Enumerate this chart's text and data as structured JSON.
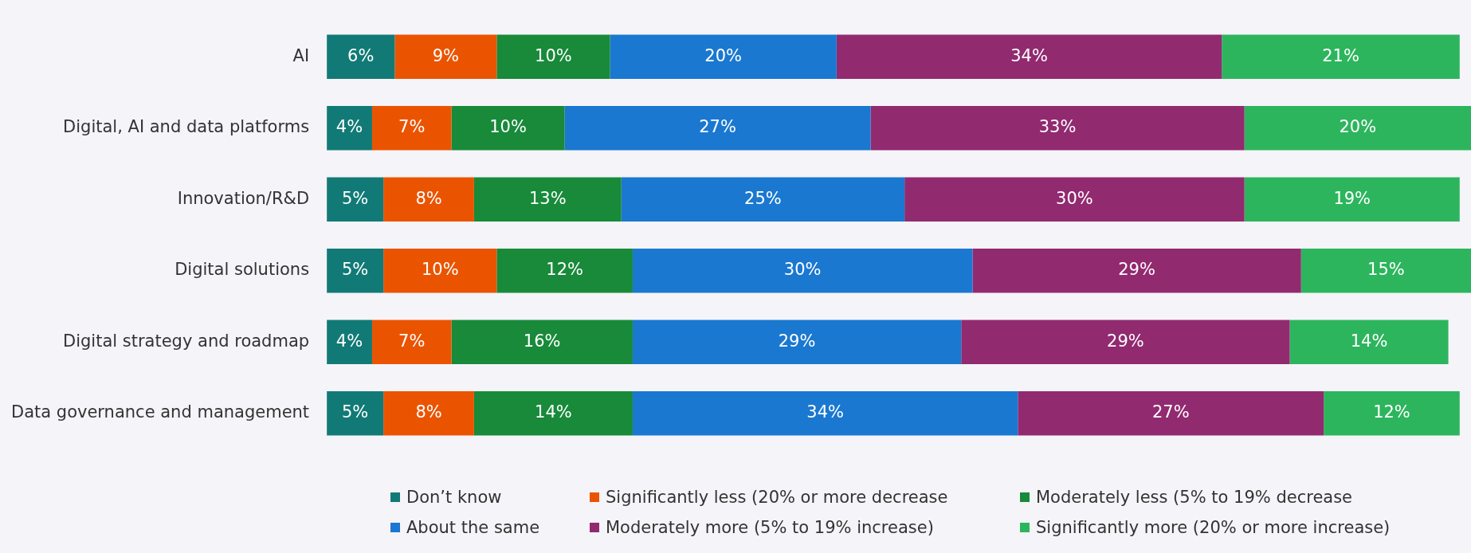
{
  "chart_data": {
    "type": "bar",
    "orientation": "horizontal",
    "stacked": true,
    "legend": "bottom",
    "categories": [
      "AI",
      "Digital, AI and data platforms",
      "Innovation/R&D",
      "Digital solutions",
      "Digital strategy and roadmap",
      "Data governance and management"
    ],
    "series": [
      {
        "name": "Don’t know",
        "color": "#127a76",
        "values": [
          6,
          4,
          5,
          5,
          4,
          5
        ],
        "value_labels": [
          "6%",
          "4%",
          "5%",
          "5%",
          "4%",
          "5%"
        ]
      },
      {
        "name": "Significantly less (20% or more decrease",
        "color": "#ea5400",
        "values": [
          9,
          7,
          8,
          10,
          7,
          8
        ],
        "value_labels": [
          "9%",
          "7%",
          "8%",
          "10%",
          "7%",
          "8%"
        ]
      },
      {
        "name": "Moderately less (5% to 19% decrease",
        "color": "#188a3a",
        "values": [
          10,
          10,
          13,
          12,
          16,
          14
        ],
        "value_labels": [
          "10%",
          "10%",
          "13%",
          "12%",
          "16%",
          "14%"
        ]
      },
      {
        "name": "About the same",
        "color": "#1a78d0",
        "values": [
          20,
          27,
          25,
          30,
          29,
          34
        ],
        "value_labels": [
          "20%",
          "27%",
          "25%",
          "30%",
          "29%",
          "34%"
        ]
      },
      {
        "name": "Moderately more (5% to 19% increase)",
        "color": "#922a70",
        "values": [
          34,
          33,
          30,
          29,
          29,
          27
        ],
        "value_labels": [
          "34%",
          "33%",
          "30%",
          "29%",
          "29%",
          "27%"
        ]
      },
      {
        "name": "Significantly more (20% or more increase)",
        "color": "#2db55d",
        "values": [
          21,
          20,
          19,
          15,
          14,
          12
        ],
        "value_labels": [
          "21%",
          "20%",
          "19%",
          "15%",
          "14%",
          "12%"
        ]
      }
    ]
  }
}
